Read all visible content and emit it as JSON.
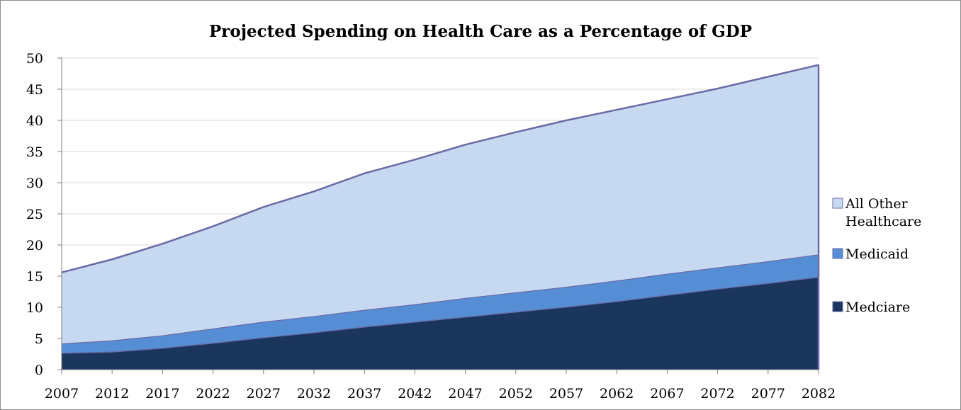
{
  "chart_data": {
    "type": "area",
    "stacked": true,
    "title": "Projected Spending on Health Care as a Percentage of GDP",
    "xlabel": "",
    "ylabel": "",
    "ylim": [
      0,
      50
    ],
    "yticks": [
      "0",
      "5",
      "10",
      "15",
      "20",
      "25",
      "30",
      "35",
      "40",
      "45",
      "50"
    ],
    "xticks": [
      "2007",
      "2012",
      "2017",
      "2022",
      "2027",
      "2032",
      "2037",
      "2042",
      "2047",
      "2052",
      "2057",
      "2062",
      "2067",
      "2072",
      "2077",
      "2082"
    ],
    "grid": true,
    "legend_position": "right",
    "legend": [
      "All Other Healthcare",
      "Medicaid",
      "Medciare"
    ],
    "x": [
      2007,
      2012,
      2017,
      2022,
      2027,
      2032,
      2037,
      2042,
      2047,
      2052,
      2057,
      2062,
      2067,
      2072,
      2077,
      2082
    ],
    "series": [
      {
        "name": "Medciare",
        "color": "#1b365d",
        "values": [
          2.7,
          2.9,
          3.5,
          4.3,
          5.2,
          6.0,
          6.9,
          7.7,
          8.5,
          9.3,
          10.1,
          11.0,
          12.0,
          13.0,
          13.9,
          14.9
        ]
      },
      {
        "name": "Medicaid",
        "color": "#558ed5",
        "values": [
          1.5,
          1.8,
          2.0,
          2.3,
          2.5,
          2.6,
          2.7,
          2.8,
          3.0,
          3.1,
          3.2,
          3.3,
          3.4,
          3.4,
          3.5,
          3.6
        ]
      },
      {
        "name": "All Other Healthcare",
        "color": "#c6d9f1",
        "values": [
          11.4,
          13.0,
          14.7,
          16.4,
          18.4,
          20.0,
          21.9,
          23.2,
          24.6,
          25.7,
          26.7,
          27.4,
          28.0,
          28.7,
          29.6,
          30.4
        ]
      }
    ]
  }
}
